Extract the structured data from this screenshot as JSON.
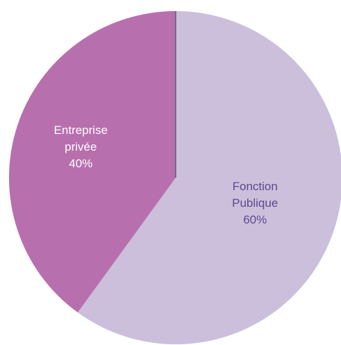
{
  "chart_data": {
    "type": "pie",
    "title": "",
    "slices": [
      {
        "name_line1": "Fonction",
        "name_line2": "Publique",
        "percent_label": "60%",
        "value": 60,
        "color": "#cbbfdc",
        "label_color": "#5b4a8c"
      },
      {
        "name_line1": "Entreprise",
        "name_line2": "privée",
        "percent_label": "40%",
        "value": 40,
        "color": "#b86fae",
        "label_color": "#ffffff"
      }
    ],
    "start_angle_deg": 0,
    "direction": "clockwise",
    "legend": "none"
  }
}
